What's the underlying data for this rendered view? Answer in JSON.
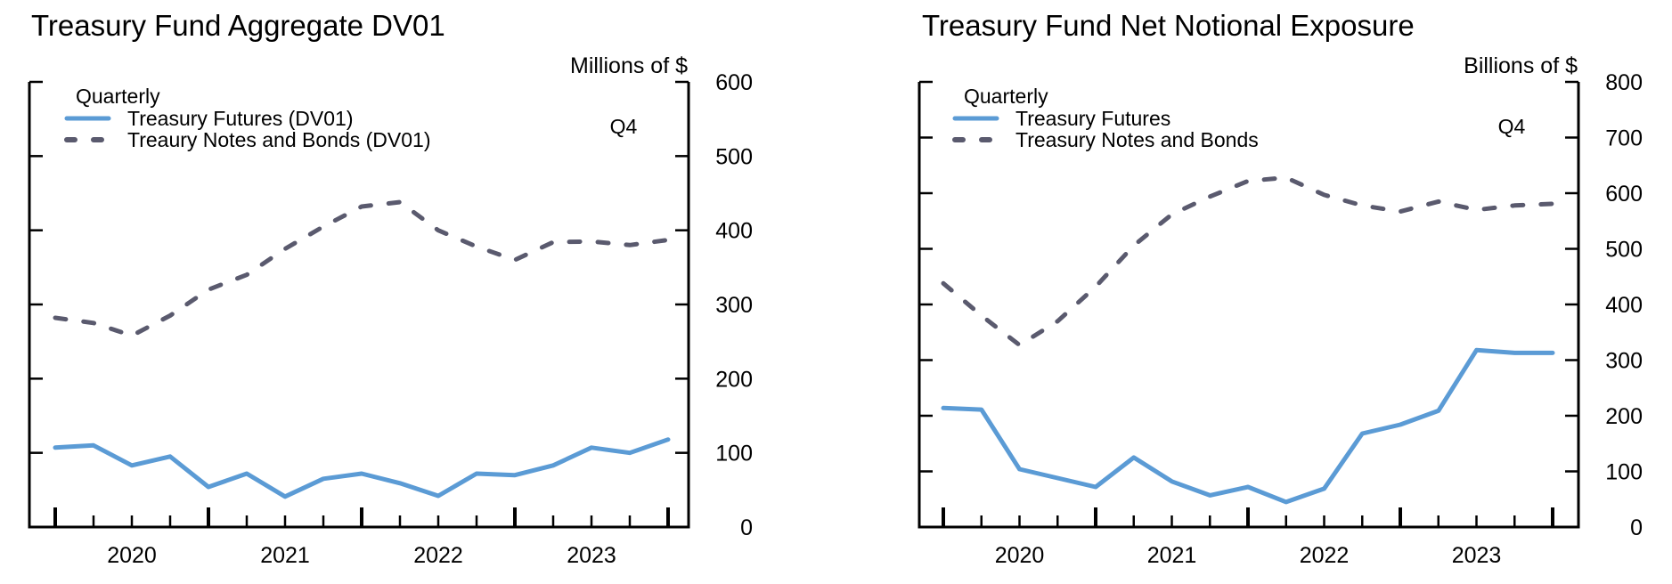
{
  "colors": {
    "futures": "#5b9bd5",
    "notes_bonds": "#5a5a6e",
    "axis": "#000000"
  },
  "chart_data": [
    {
      "type": "line",
      "title": "Treasury Fund Aggregate DV01",
      "ylabel": "Millions of $",
      "legend_title": "Quarterly",
      "annotation": "Q4",
      "legend_position": "top-left",
      "grid": false,
      "ylim": [
        0,
        600
      ],
      "yticks": [
        "0",
        "100",
        "200",
        "300",
        "400",
        "500",
        "600"
      ],
      "xtick_labels": [
        "2020",
        "2021",
        "2022",
        "2023"
      ],
      "x": [
        "2019Q4",
        "2020Q1",
        "2020Q2",
        "2020Q3",
        "2020Q4",
        "2021Q1",
        "2021Q2",
        "2021Q3",
        "2021Q4",
        "2022Q1",
        "2022Q2",
        "2022Q3",
        "2022Q4",
        "2023Q1",
        "2023Q2",
        "2023Q3",
        "2023Q4"
      ],
      "series": [
        {
          "name": "Treasury Futures (DV01)",
          "style": "solid",
          "values": [
            107,
            110,
            83,
            95,
            54,
            72,
            41,
            65,
            72,
            59,
            42,
            72,
            70,
            83,
            107,
            100,
            118
          ]
        },
        {
          "name": "Treaury Notes and Bonds (DV01)",
          "style": "dashed",
          "values": [
            282,
            275,
            258,
            285,
            320,
            340,
            375,
            405,
            432,
            438,
            400,
            378,
            360,
            384,
            385,
            380,
            387
          ]
        }
      ]
    },
    {
      "type": "line",
      "title": "Treasury Fund Net Notional Exposure",
      "ylabel": "Billions of $",
      "legend_title": "Quarterly",
      "annotation": "Q4",
      "legend_position": "top-left",
      "grid": false,
      "ylim": [
        0,
        800
      ],
      "yticks": [
        "0",
        "100",
        "200",
        "300",
        "400",
        "500",
        "600",
        "700",
        "800"
      ],
      "xtick_labels": [
        "2020",
        "2021",
        "2022",
        "2023"
      ],
      "x": [
        "2019Q4",
        "2020Q1",
        "2020Q2",
        "2020Q3",
        "2020Q4",
        "2021Q1",
        "2021Q2",
        "2021Q3",
        "2021Q4",
        "2022Q1",
        "2022Q2",
        "2022Q3",
        "2022Q4",
        "2023Q1",
        "2023Q2",
        "2023Q3",
        "2023Q4"
      ],
      "series": [
        {
          "name": "Treasury Futures",
          "style": "solid",
          "values": [
            214,
            211,
            104,
            88,
            72,
            125,
            82,
            57,
            72,
            45,
            69,
            168,
            184,
            209,
            318,
            313,
            313
          ]
        },
        {
          "name": "Treasury Notes and Bonds",
          "style": "dashed",
          "values": [
            438,
            380,
            327,
            370,
            432,
            506,
            562,
            594,
            622,
            628,
            597,
            578,
            567,
            585,
            570,
            578,
            581
          ]
        }
      ]
    }
  ]
}
